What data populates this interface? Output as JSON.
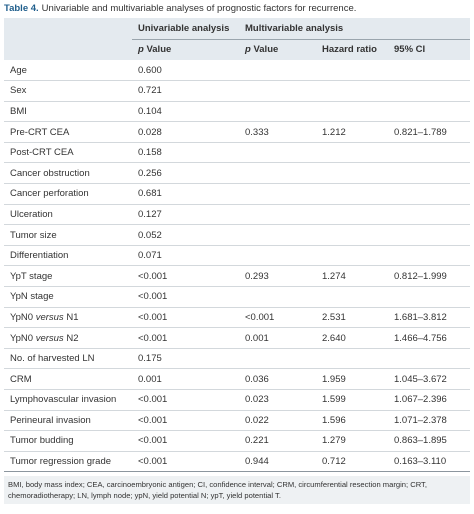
{
  "caption": {
    "label": "Table 4.",
    "text": "Univariable and multivariable analyses of prognostic factors for recurrence."
  },
  "table": {
    "header_groups": [
      "Univariable analysis",
      "Multivariable analysis"
    ],
    "columns": [
      [
        {
          "text": "p",
          "italic": true
        },
        {
          "text": "Value"
        }
      ],
      [
        {
          "text": "p",
          "italic": true
        },
        {
          "text": "Value"
        }
      ],
      "Hazard ratio",
      "95% CI"
    ],
    "rows": [
      [
        "Age",
        "0.600",
        null,
        null,
        null
      ],
      [
        "Sex",
        "0.721",
        null,
        null,
        null
      ],
      [
        "BMI",
        "0.104",
        null,
        null,
        null
      ],
      [
        "Pre-CRT CEA",
        "0.028",
        "0.333",
        "1.212",
        "0.821–1.789"
      ],
      [
        "Post-CRT CEA",
        "0.158",
        null,
        null,
        null
      ],
      [
        "Cancer obstruction",
        "0.256",
        null,
        null,
        null
      ],
      [
        "Cancer perforation",
        "0.681",
        null,
        null,
        null
      ],
      [
        "Ulceration",
        "0.127",
        null,
        null,
        null
      ],
      [
        "Tumor size",
        "0.052",
        null,
        null,
        null
      ],
      [
        "Differentiation",
        "0.071",
        null,
        null,
        null
      ],
      [
        "YpT stage",
        "<0.001",
        "0.293",
        "1.274",
        "0.812–1.999"
      ],
      [
        "YpN stage",
        "<0.001",
        null,
        null,
        null
      ],
      [
        [
          {
            "text": "YpN0"
          },
          {
            "text": "versus",
            "italic": true
          },
          {
            "text": "N1"
          }
        ],
        "<0.001",
        "<0.001",
        "2.531",
        "1.681–3.812"
      ],
      [
        [
          {
            "text": "YpN0"
          },
          {
            "text": "versus",
            "italic": true
          },
          {
            "text": "N2"
          }
        ],
        "<0.001",
        "0.001",
        "2.640",
        "1.466–4.756"
      ],
      [
        "No. of harvested LN",
        "0.175",
        null,
        null,
        null
      ],
      [
        "CRM",
        "0.001",
        "0.036",
        "1.959",
        "1.045–3.672"
      ],
      [
        "Lymphovascular invasion",
        "<0.001",
        "0.023",
        "1.599",
        "1.067–2.396"
      ],
      [
        "Perineural invasion",
        "<0.001",
        "0.022",
        "1.596",
        "1.071–2.378"
      ],
      [
        "Tumor budding",
        "<0.001",
        "0.221",
        "1.279",
        "0.863–1.895"
      ],
      [
        "Tumor regression grade",
        "<0.001",
        "0.944",
        "0.712",
        "0.163–3.110"
      ]
    ]
  },
  "footnote": "BMI, body mass index; CEA, carcinoembryonic antigen; CI, confidence interval; CRM, circumferential resection margin; CRT, chemoradiotherapy; LN, lymph node; ypN, yield potential N; ypT, yield potential T."
}
